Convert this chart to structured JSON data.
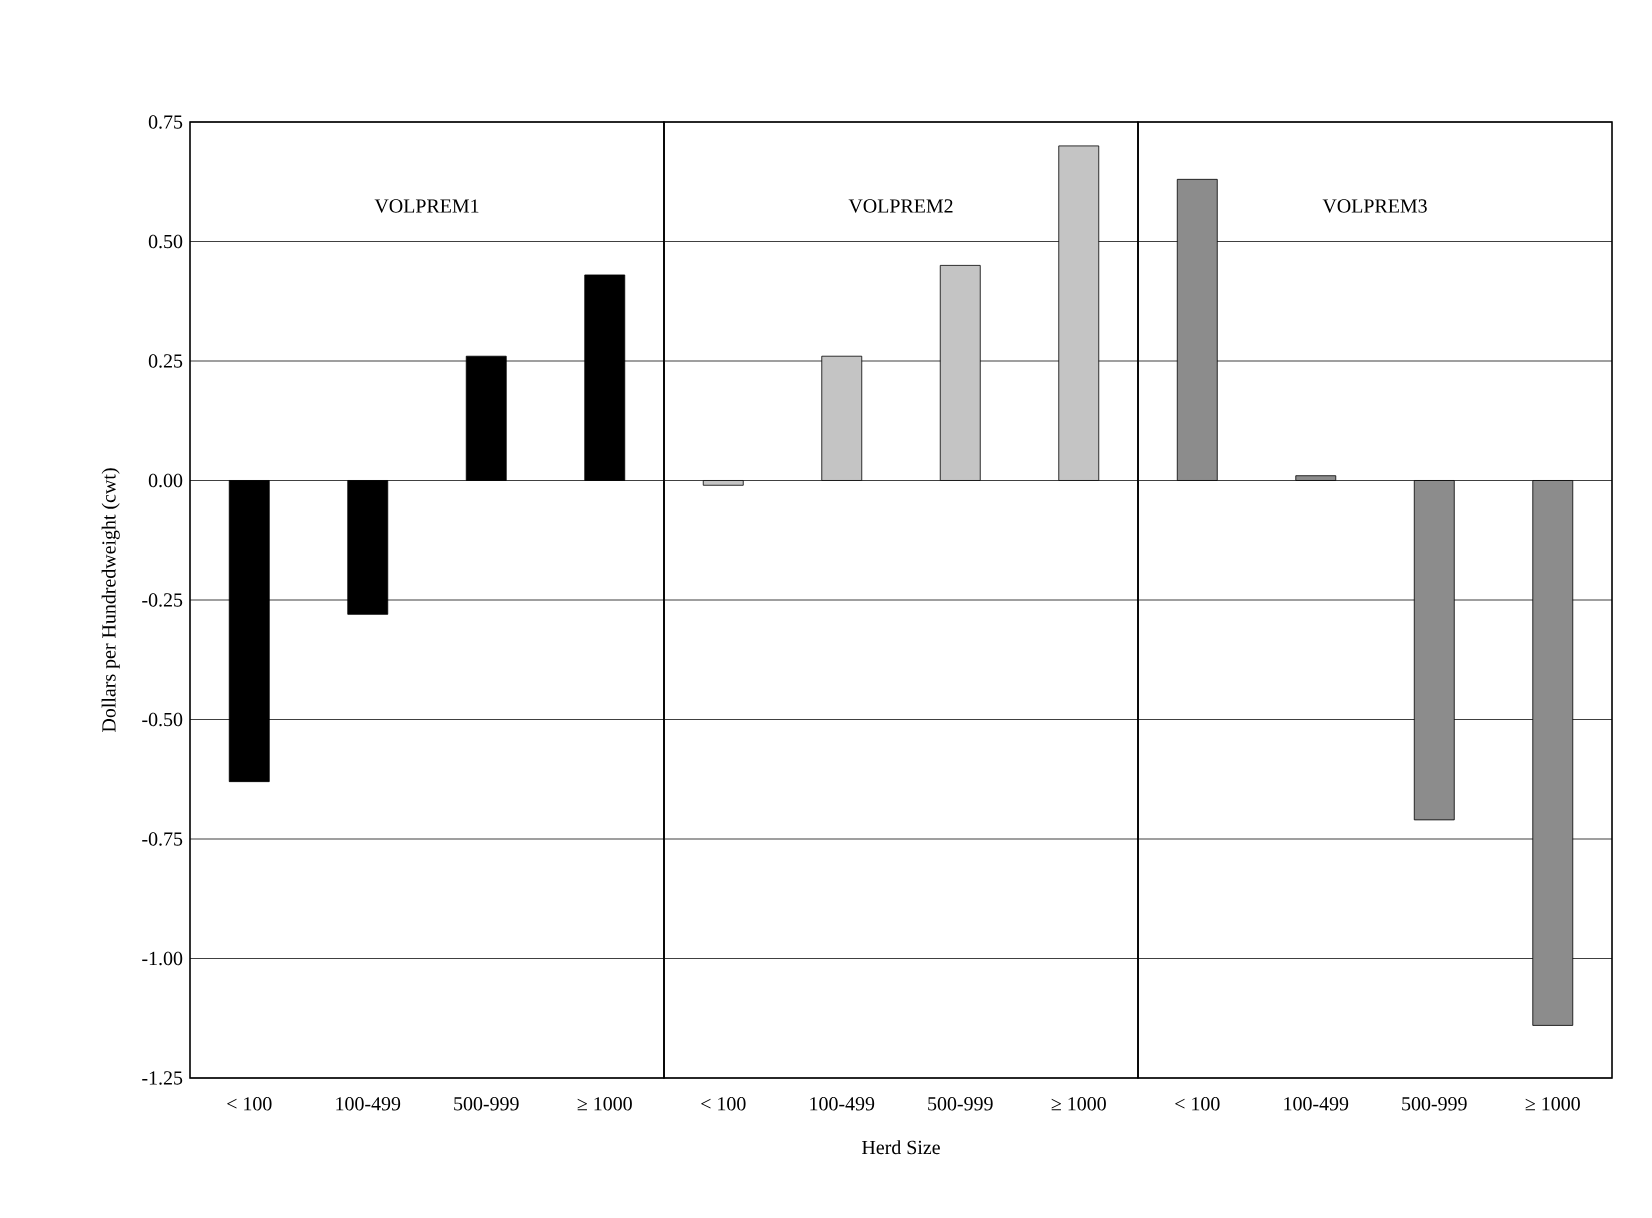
{
  "chart_data": [
    {
      "type": "bar",
      "ylabel": "Dollars per Hundredweight  (cwt)",
      "categories": [
        "< 100",
        "100-499",
        "500-999",
        "≥ 1000"
      ],
      "series": [
        {
          "name": "VOLPREM1",
          "color": "#000000",
          "values": [
            -0.63,
            -0.28,
            0.26,
            0.43
          ]
        }
      ],
      "ylim": [
        -1.25,
        0.75
      ],
      "yticks": [
        {
          "value": -1.25,
          "label": "-1.25"
        },
        {
          "value": -1,
          "label": "-1.00"
        },
        {
          "value": -0.75,
          "label": "-0.75"
        },
        {
          "value": -0.5,
          "label": "-0.50"
        },
        {
          "value": -0.25,
          "label": "-0.25"
        },
        {
          "value": 0,
          "label": "0.00"
        },
        {
          "value": 0.25,
          "label": "0.25"
        },
        {
          "value": 0.5,
          "label": "0.50"
        },
        {
          "value": 0.75,
          "label": "0.75"
        }
      ],
      "grid": "y"
    },
    {
      "type": "bar",
      "xlabel": "Herd Size",
      "categories": [
        "< 100",
        "100-499",
        "500-999",
        "≥ 1000"
      ],
      "series": [
        {
          "name": "VOLPREM2",
          "color": "#c4c4c4",
          "values": [
            -0.01,
            0.26,
            0.45,
            0.7
          ]
        }
      ],
      "ylim": [
        -1.25,
        0.75
      ],
      "yticks": [
        -1.25,
        -1,
        -0.75,
        -0.5,
        -0.25,
        0,
        0.25,
        0.5,
        0.75
      ],
      "grid": "y",
      "tick_labels": "x"
    },
    {
      "type": "bar",
      "categories": [
        "< 100",
        "100-499",
        "500-999",
        "≥ 1000"
      ],
      "series": [
        {
          "name": "VOLPREM3",
          "color": "#8c8c8c",
          "values": [
            0.63,
            0.01,
            -0.71,
            -1.14
          ]
        }
      ],
      "ylim": [
        -1.25,
        0.75
      ],
      "yticks": [
        -1.25,
        -1,
        -0.75,
        -0.5,
        -0.25,
        0,
        0.25,
        0.5,
        0.75
      ],
      "grid": "y",
      "tick_labels": "x"
    }
  ]
}
